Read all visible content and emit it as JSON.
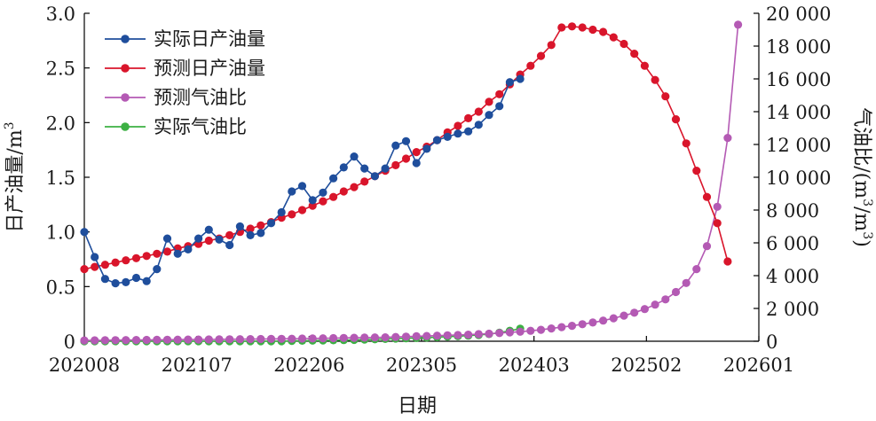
{
  "chart_data": {
    "type": "line",
    "xlabel": "日期",
    "ylabel_left": "日产油量/m³",
    "ylabel_right": "气油比/(m³/m³)",
    "x_tick_labels": [
      "202008",
      "202107",
      "202206",
      "202305",
      "202403",
      "202502",
      "202601"
    ],
    "y_left_ticks": [
      "0",
      "0.5",
      "1.0",
      "1.5",
      "2.0",
      "2.5",
      "3.0"
    ],
    "y_right_ticks": [
      "0",
      "2 000",
      "4 000",
      "6 000",
      "8 000",
      "10 000",
      "12 000",
      "14 000",
      "16 000",
      "18 000",
      "20 000"
    ],
    "ylim_left": [
      0,
      3.0
    ],
    "ylim_right": [
      0,
      20000
    ],
    "x_unit": "month index (0 = 202008)",
    "xlim": [
      0,
      65
    ],
    "grid": false,
    "legend_position": "top-left",
    "series": [
      {
        "name": "实际日产油量",
        "axis": "left",
        "color": "#1f4e9c",
        "x": [
          0,
          1,
          2,
          3,
          4,
          5,
          6,
          7,
          8,
          9,
          10,
          11,
          12,
          13,
          14,
          15,
          16,
          17,
          18,
          19,
          20,
          21,
          22,
          23,
          24,
          25,
          26,
          27,
          28,
          29,
          30,
          31,
          32,
          33,
          34,
          35,
          36,
          37,
          38,
          39,
          40,
          41,
          42
        ],
        "values": [
          1.0,
          0.77,
          0.57,
          0.53,
          0.54,
          0.58,
          0.55,
          0.66,
          0.94,
          0.8,
          0.84,
          0.94,
          1.02,
          0.93,
          0.88,
          1.05,
          0.97,
          0.99,
          1.08,
          1.18,
          1.37,
          1.42,
          1.29,
          1.36,
          1.49,
          1.59,
          1.69,
          1.58,
          1.51,
          1.58,
          1.79,
          1.83,
          1.63,
          1.76,
          1.84,
          1.87,
          1.9,
          1.92,
          1.98,
          2.07,
          2.15,
          2.37,
          2.4
        ]
      },
      {
        "name": "预测日产油量",
        "axis": "left",
        "color": "#d9152b",
        "x": [
          0,
          1,
          2,
          3,
          4,
          5,
          6,
          7,
          8,
          9,
          10,
          11,
          12,
          13,
          14,
          15,
          16,
          17,
          18,
          19,
          20,
          21,
          22,
          23,
          24,
          25,
          26,
          27,
          28,
          29,
          30,
          31,
          32,
          33,
          34,
          35,
          36,
          37,
          38,
          39,
          40,
          41,
          42,
          43,
          44,
          45,
          46,
          47,
          48,
          49,
          50,
          51,
          52,
          53,
          54,
          55,
          56,
          57,
          58,
          59,
          60,
          61,
          62
        ],
        "values": [
          0.66,
          0.68,
          0.7,
          0.72,
          0.74,
          0.76,
          0.78,
          0.8,
          0.82,
          0.85,
          0.87,
          0.89,
          0.92,
          0.94,
          0.97,
          1.0,
          1.03,
          1.06,
          1.09,
          1.13,
          1.16,
          1.2,
          1.24,
          1.28,
          1.32,
          1.37,
          1.41,
          1.46,
          1.51,
          1.56,
          1.61,
          1.67,
          1.73,
          1.78,
          1.84,
          1.91,
          1.97,
          2.04,
          2.1,
          2.19,
          2.26,
          2.35,
          2.44,
          2.52,
          2.61,
          2.71,
          2.87,
          2.88,
          2.87,
          2.85,
          2.83,
          2.78,
          2.72,
          2.63,
          2.52,
          2.39,
          2.24,
          2.03,
          1.81,
          1.56,
          1.32,
          1.08,
          0.73
        ]
      },
      {
        "name": "预测气油比",
        "axis": "right",
        "color": "#b45ab4",
        "x": [
          0,
          1,
          2,
          3,
          4,
          5,
          6,
          7,
          8,
          9,
          10,
          11,
          12,
          13,
          14,
          15,
          16,
          17,
          18,
          19,
          20,
          21,
          22,
          23,
          24,
          25,
          26,
          27,
          28,
          29,
          30,
          31,
          32,
          33,
          34,
          35,
          36,
          37,
          38,
          39,
          40,
          41,
          42,
          43,
          44,
          45,
          46,
          47,
          48,
          49,
          50,
          51,
          52,
          53,
          54,
          55,
          56,
          57,
          58,
          59,
          60,
          61,
          62,
          63
        ],
        "values": [
          50,
          55,
          60,
          65,
          70,
          75,
          80,
          85,
          90,
          95,
          100,
          105,
          110,
          115,
          120,
          125,
          130,
          135,
          140,
          145,
          150,
          160,
          170,
          180,
          190,
          200,
          210,
          220,
          230,
          240,
          260,
          280,
          300,
          320,
          340,
          360,
          380,
          400,
          430,
          460,
          500,
          540,
          580,
          640,
          700,
          780,
          860,
          940,
          1040,
          1140,
          1260,
          1400,
          1560,
          1740,
          1960,
          2230,
          2550,
          3000,
          3550,
          4400,
          5800,
          8200,
          12400,
          19300
        ]
      },
      {
        "name": "实际气油比",
        "axis": "right",
        "color": "#3cb043",
        "x": [
          0,
          1,
          2,
          3,
          4,
          5,
          6,
          7,
          8,
          9,
          10,
          11,
          12,
          13,
          14,
          15,
          16,
          17,
          18,
          19,
          20,
          21,
          22,
          23,
          24,
          25,
          26,
          27,
          28,
          29,
          30,
          31,
          32,
          33,
          34,
          35,
          36,
          37,
          38,
          39,
          40,
          41,
          42
        ],
        "values": [
          0,
          0,
          0,
          0,
          0,
          0,
          0,
          0,
          0,
          0,
          0,
          0,
          0,
          0,
          0,
          0,
          0,
          0,
          0,
          0,
          20,
          30,
          40,
          50,
          60,
          70,
          80,
          100,
          120,
          140,
          160,
          180,
          200,
          220,
          250,
          280,
          310,
          340,
          380,
          440,
          520,
          640,
          760
        ]
      }
    ]
  }
}
